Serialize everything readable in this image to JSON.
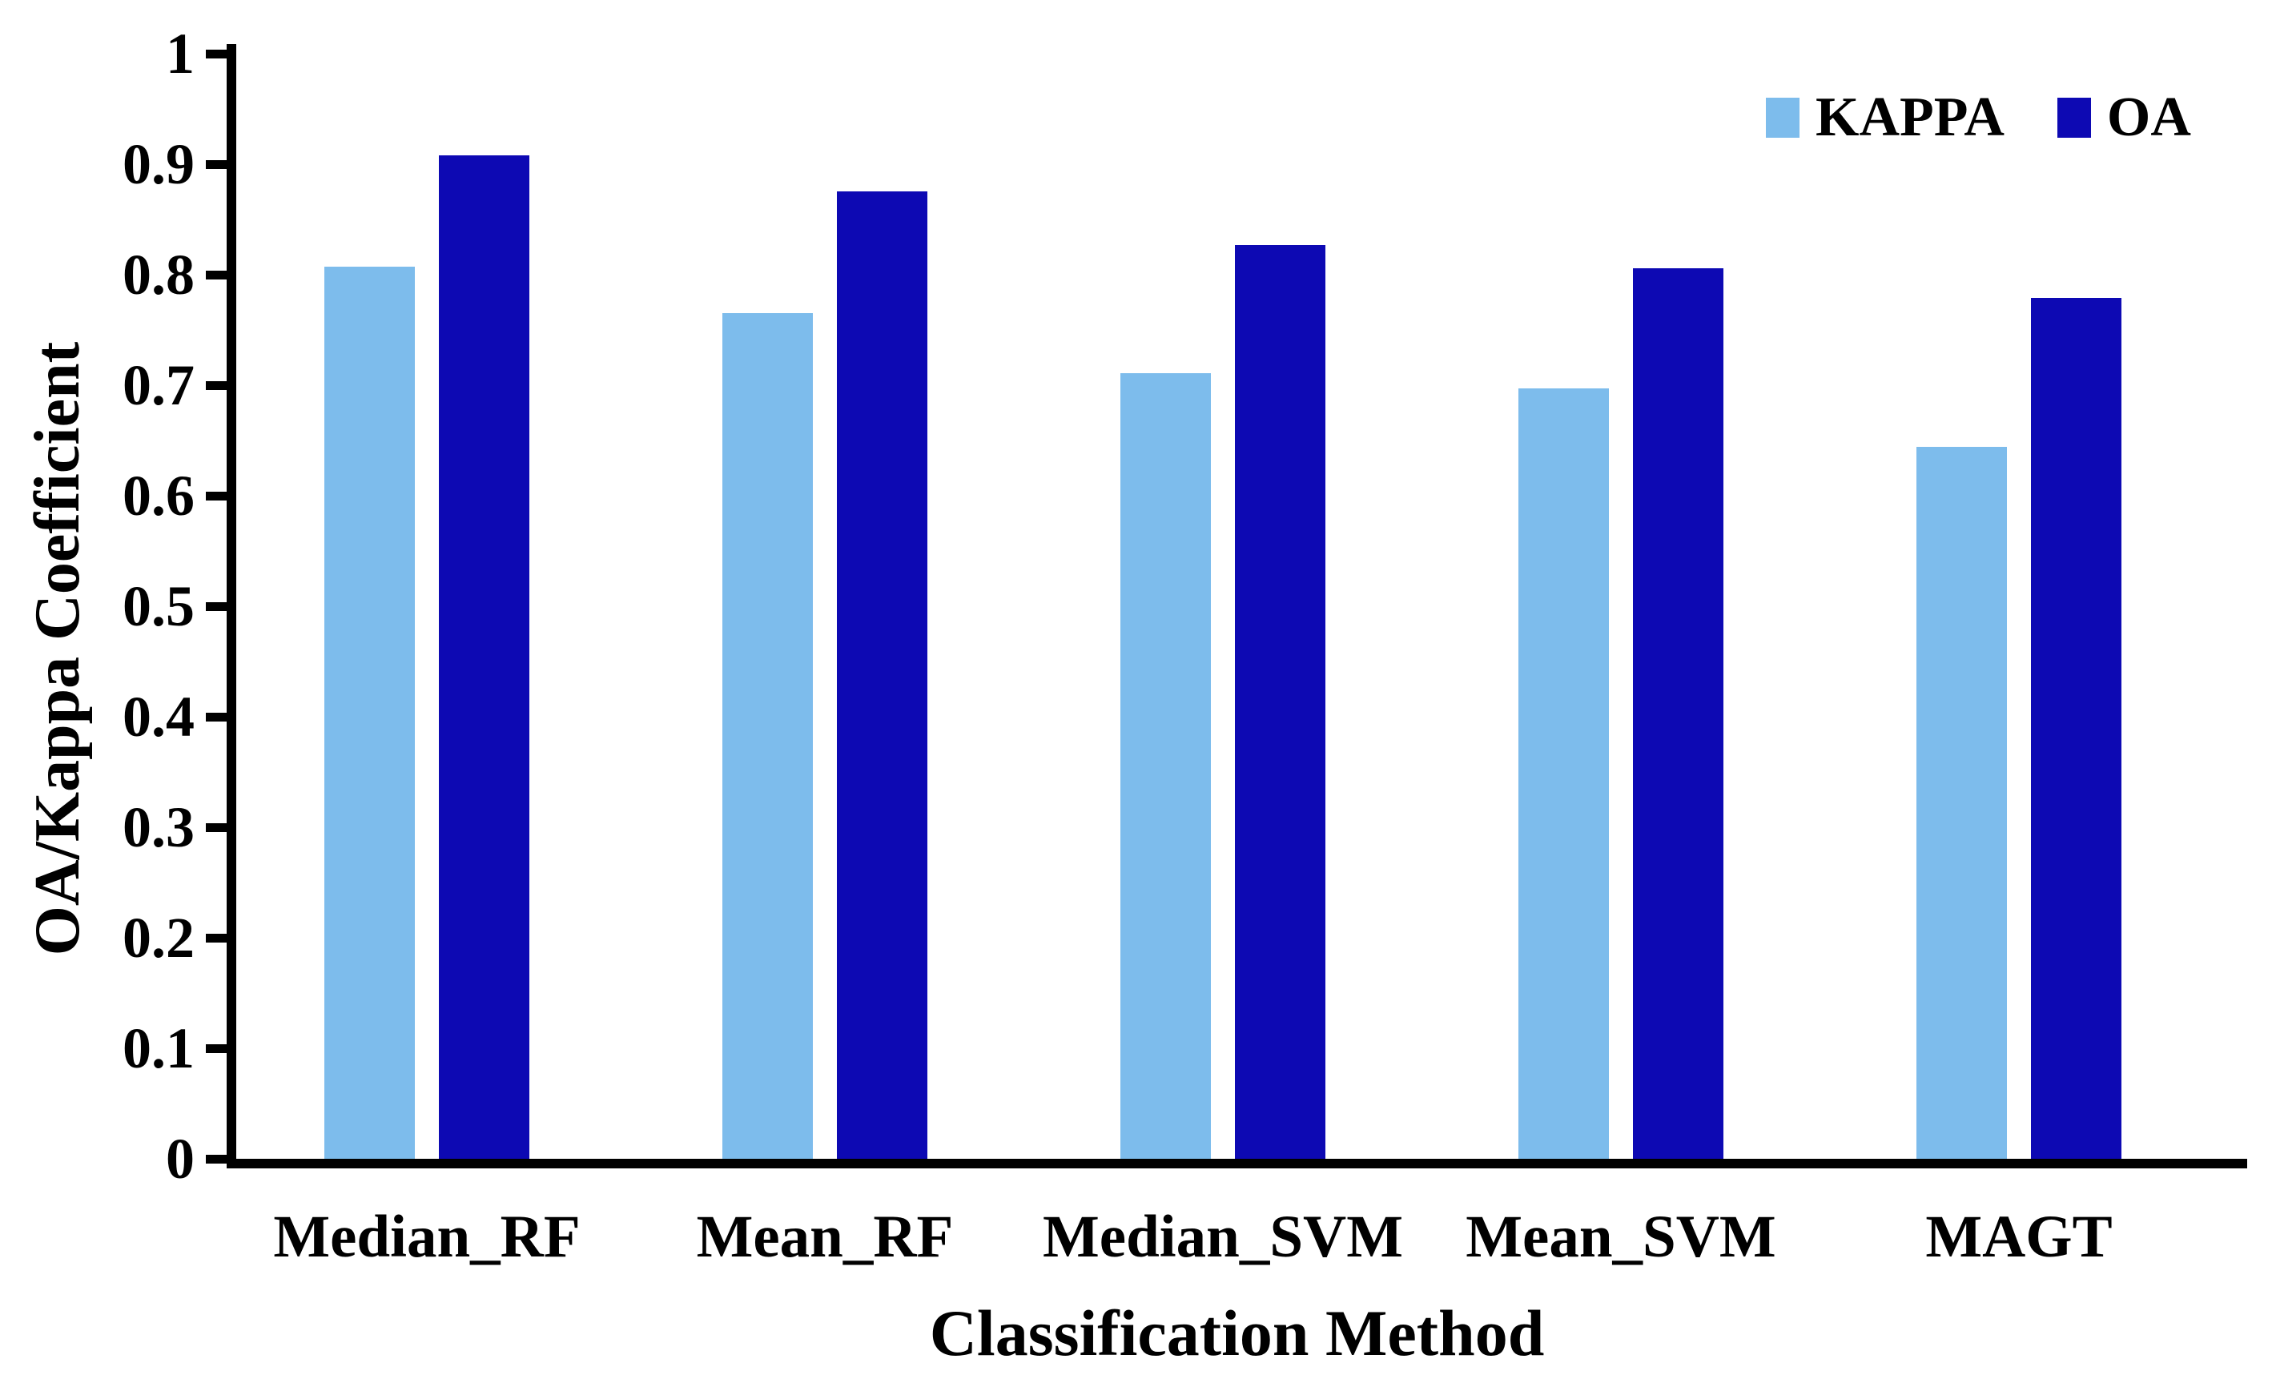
{
  "chart_data": {
    "type": "bar",
    "title": "",
    "xlabel": "Classification Method",
    "ylabel": "OA/Kappa Coefficient",
    "categories": [
      "Median_RF",
      "Mean_RF",
      "Median_SVM",
      "Mean_SVM",
      "MAGT"
    ],
    "series": [
      {
        "name": "KAPPA",
        "color": "#7DBCEC",
        "values": [
          0.807,
          0.765,
          0.711,
          0.697,
          0.644
        ]
      },
      {
        "name": "OA",
        "color": "#0D09B3",
        "values": [
          0.908,
          0.875,
          0.827,
          0.806,
          0.779
        ]
      }
    ],
    "ylim": [
      0,
      1
    ],
    "yticks": [
      0,
      0.1,
      0.2,
      0.3,
      0.4,
      0.5,
      0.6,
      0.7,
      0.8,
      0.9,
      1
    ],
    "ytick_labels": [
      "0",
      "0.1",
      "0.2",
      "0.3",
      "0.4",
      "0.5",
      "0.6",
      "0.7",
      "0.8",
      "0.9",
      "1"
    ],
    "grid": false,
    "legend_position": "top-right",
    "axis_color": "#000000",
    "text_color": "#000000",
    "background": "#FFFFFF"
  }
}
